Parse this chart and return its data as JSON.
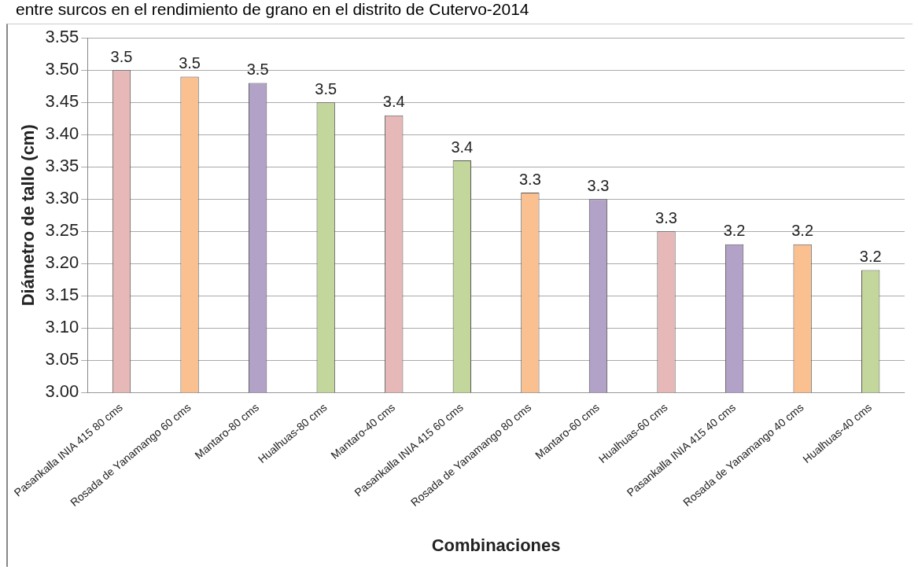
{
  "chart_data": {
    "type": "bar",
    "title": "entre surcos en el rendimiento de grano en el distrito de Cutervo-2014",
    "xlabel": "Combinaciones",
    "ylabel": "Diámetro de tallo (cm)",
    "categories": [
      "Pasankalla INIA 415 80 cms",
      "Rosada de Yanamango 60 cms",
      "Mantaro-80 cms",
      "Hualhuas-80 cms",
      "Mantaro-40 cms",
      "Pasankalla INIA 415 60 cms",
      "Rosada de Yanamango 80 cms",
      "Mantaro-60 cms",
      "Hualhuas-60 cms",
      "Pasankalla INIA 415 40 cms",
      "Rosada de Yanamango 40 cms",
      "Hualhuas-40 cms"
    ],
    "values": [
      3.5,
      3.49,
      3.48,
      3.45,
      3.43,
      3.36,
      3.31,
      3.3,
      3.25,
      3.23,
      3.23,
      3.19
    ],
    "value_labels": [
      "3.5",
      "3.5",
      "3.5",
      "3.5",
      "3.4",
      "3.4",
      "3.3",
      "3.3",
      "3.3",
      "3.2",
      "3.2",
      "3.2"
    ],
    "colors": [
      "#e6b9b8",
      "#fac090",
      "#b3a2c7",
      "#c3d69b",
      "#e6b9b8",
      "#c3d69b",
      "#fac090",
      "#b3a2c7",
      "#e6b9b8",
      "#b3a2c7",
      "#fac090",
      "#c3d69b"
    ],
    "ylim": [
      3.0,
      3.55
    ],
    "yticks": [
      {
        "value": 3.0,
        "label": "3.00"
      },
      {
        "value": 3.05,
        "label": "3.05"
      },
      {
        "value": 3.1,
        "label": "3.10"
      },
      {
        "value": 3.15,
        "label": "3.15"
      },
      {
        "value": 3.2,
        "label": "3.20"
      },
      {
        "value": 3.25,
        "label": "3.25"
      },
      {
        "value": 3.3,
        "label": "3.30"
      },
      {
        "value": 3.35,
        "label": "3.35"
      },
      {
        "value": 3.4,
        "label": "3.40"
      },
      {
        "value": 3.45,
        "label": "3.45"
      },
      {
        "value": 3.5,
        "label": "3.50"
      },
      {
        "value": 3.55,
        "label": "3.55"
      }
    ],
    "grid": "y",
    "legend": false
  }
}
